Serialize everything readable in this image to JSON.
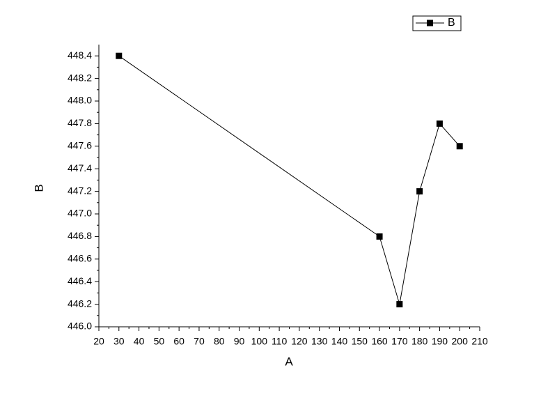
{
  "chart_data": {
    "type": "line",
    "x_label": "A",
    "y_label": "B",
    "x": [
      30,
      160,
      170,
      180,
      190,
      200
    ],
    "series": [
      {
        "name": "B",
        "color": "#000000",
        "values": [
          448.4,
          446.8,
          446.2,
          447.2,
          447.8,
          447.6
        ]
      }
    ],
    "xlim": [
      20,
      210
    ],
    "xticks": [
      20,
      30,
      40,
      50,
      60,
      70,
      80,
      90,
      100,
      110,
      120,
      130,
      140,
      150,
      160,
      170,
      180,
      190,
      200,
      210
    ],
    "ylim": [
      446,
      448.5
    ],
    "yticks": [
      {
        "value": 446,
        "label": "446.0"
      },
      446.2,
      446.4,
      446.6,
      446.8,
      {
        "value": 447,
        "label": "447.0"
      },
      447.2,
      447.4,
      447.6,
      447.8,
      {
        "value": 448,
        "label": "448.0"
      },
      448.2,
      448.4
    ],
    "legend": "top-right",
    "grid": false
  }
}
